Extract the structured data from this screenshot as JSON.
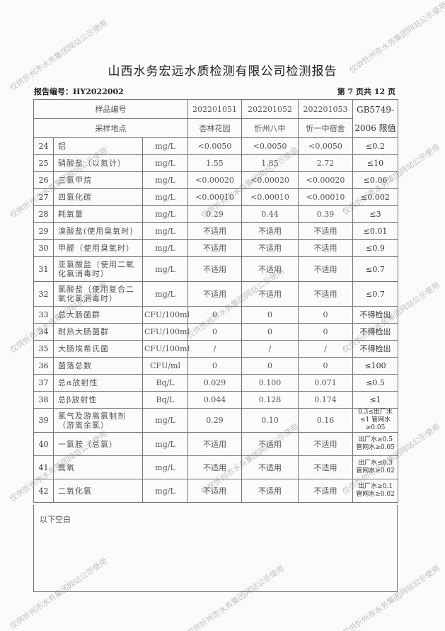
{
  "watermark": "仅供忻州市水务集团网站公示使用",
  "title": "山西水务宏远水质检测有限公司检测报告",
  "report_no": "报告编号：HY2022002",
  "page_no": "第 7 页共 12 页",
  "header": {
    "sample_no_label": "样品编号",
    "location_label": "采样地点",
    "standard_label": "GB5749-2006 限值",
    "samples": [
      {
        "no": "202201051",
        "location": "杏林花园"
      },
      {
        "no": "202201052",
        "location": "忻州八中"
      },
      {
        "no": "202201053",
        "location": "忻一中宿舍"
      }
    ]
  },
  "rows": [
    {
      "no": "24",
      "name": "铝",
      "unit": "mg/L",
      "v": [
        "<0.0050",
        "<0.0050",
        "<0.0050"
      ],
      "limit": "≤0.2"
    },
    {
      "no": "25",
      "name": "硝酸盐（以氮计）",
      "unit": "mg/L",
      "v": [
        "1.55",
        "1.85",
        "2.72"
      ],
      "limit": "≤10"
    },
    {
      "no": "26",
      "name": "三氯甲烷",
      "unit": "mg/L",
      "v": [
        "<0.00020",
        "<0.00020",
        "<0.00020"
      ],
      "limit": "≤0.06"
    },
    {
      "no": "27",
      "name": "四氯化碳",
      "unit": "mg/L",
      "v": [
        "<0.00010",
        "<0.00010",
        "<0.00010"
      ],
      "limit": "≤0.002"
    },
    {
      "no": "28",
      "name": "耗氧量",
      "unit": "mg/L",
      "v": [
        "0.29",
        "0.44",
        "0.39"
      ],
      "limit": "≤3"
    },
    {
      "no": "29",
      "name": "溴酸盐(使用臭氧时)",
      "unit": "mg/L",
      "v": [
        "不适用",
        "不适用",
        "不适用"
      ],
      "limit": "≤0.01"
    },
    {
      "no": "30",
      "name": "甲醛（使用臭氧时）",
      "unit": "mg/L",
      "v": [
        "不适用",
        "不适用",
        "不适用"
      ],
      "limit": "≤0.9"
    },
    {
      "no": "31",
      "name": "亚氯酸盐（使用二氧化氯消毒时）",
      "unit": "mg/L",
      "v": [
        "不适用",
        "不适用",
        "不适用"
      ],
      "limit": "≤0.7"
    },
    {
      "no": "32",
      "name": "氯酸盐（使用复合二氧化氯消毒时）",
      "unit": "mg/L",
      "v": [
        "不适用",
        "不适用",
        "不适用"
      ],
      "limit": "≤0.7"
    },
    {
      "no": "33",
      "name": "总大肠菌群",
      "unit": "CFU/100ml",
      "v": [
        "0",
        "0",
        "0"
      ],
      "limit": "不得检出"
    },
    {
      "no": "34",
      "name": "耐热大肠菌群",
      "unit": "CFU/100ml",
      "v": [
        "0",
        "0",
        "0"
      ],
      "limit": "不得检出"
    },
    {
      "no": "35",
      "name": "大肠埃希氏菌",
      "unit": "CFU/100ml",
      "v": [
        "/",
        "/",
        "/"
      ],
      "limit": "不得检出"
    },
    {
      "no": "36",
      "name": "菌落总数",
      "unit": "CFU/ml",
      "v": [
        "0",
        "0",
        "0"
      ],
      "limit": "≤100"
    },
    {
      "no": "37",
      "name": "总α放射性",
      "unit": "Bq/L",
      "v": [
        "0.029",
        "0.100",
        "0.071"
      ],
      "limit": "≤0.5"
    },
    {
      "no": "38",
      "name": "总β放射性",
      "unit": "Bq/L",
      "v": [
        "0.044",
        "0.128",
        "0.174"
      ],
      "limit": "≤1"
    },
    {
      "no": "39",
      "name": "氯气及游离氯制剂（游离余氯）",
      "unit": "mg/L",
      "v": [
        "0.29",
        "0.10",
        "0.16"
      ],
      "limit": "0.3≤出厂水≤1 管网水≥0.05"
    },
    {
      "no": "40",
      "name": "一氯胺（总氯）",
      "unit": "mg/L",
      "v": [
        "不适用",
        "不适用",
        "不适用"
      ],
      "limit": "出厂水≥0.5 管网水≥0.05"
    },
    {
      "no": "41",
      "name": "臭氧",
      "unit": "mg/L",
      "v": [
        "不适用",
        "不适用",
        "不适用"
      ],
      "limit": "出厂水≤0.3 管网水≥0.02"
    },
    {
      "no": "42",
      "name": "二氧化氯",
      "unit": "mg/L",
      "v": [
        "不适用",
        "不适用",
        "不适用"
      ],
      "limit": "出厂水≥0.1 管网水≥0.02"
    }
  ],
  "remark": "以下空白"
}
